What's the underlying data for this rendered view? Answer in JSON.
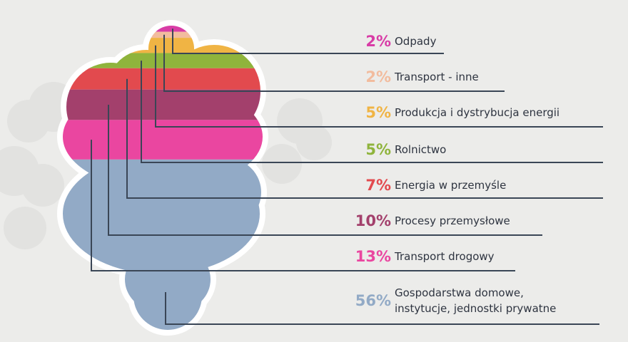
{
  "chart_data": {
    "type": "stacked-cloud",
    "categories": [
      "Odpady",
      "Transport - inne",
      "Produkcja i dystrybucja energii",
      "Rolnictwo",
      "Energia w przemyśle",
      "Procesy przemysłowe",
      "Transport drogowy",
      "Gospodarstwa domowe, instytucje, jednostki prywatne"
    ],
    "values": [
      2,
      2,
      5,
      5,
      7,
      10,
      13,
      56
    ],
    "value_labels": [
      "2%",
      "2%",
      "5%",
      "5%",
      "7%",
      "10%",
      "13%",
      "56%"
    ],
    "colors": [
      "#d83ca6",
      "#f2bc9e",
      "#f0b444",
      "#8fb43c",
      "#e24a4e",
      "#a3406c",
      "#ea46a0",
      "#92aac6"
    ]
  }
}
